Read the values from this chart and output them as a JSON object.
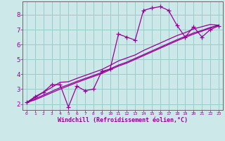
{
  "x_data": [
    0,
    1,
    2,
    3,
    4,
    5,
    6,
    7,
    8,
    9,
    10,
    11,
    12,
    13,
    14,
    15,
    16,
    17,
    18,
    19,
    20,
    21,
    22,
    23
  ],
  "y_main": [
    2.1,
    2.5,
    2.8,
    3.3,
    3.3,
    1.8,
    3.2,
    2.9,
    3.0,
    4.2,
    4.35,
    6.7,
    6.5,
    6.3,
    8.3,
    8.45,
    8.55,
    8.3,
    7.3,
    6.5,
    7.2,
    6.5,
    7.0,
    7.25
  ],
  "y_line1": [
    2.1,
    2.44,
    2.78,
    3.12,
    3.46,
    3.5,
    3.72,
    3.92,
    4.12,
    4.32,
    4.6,
    4.9,
    5.1,
    5.3,
    5.6,
    5.85,
    6.1,
    6.35,
    6.6,
    6.8,
    7.05,
    7.2,
    7.35,
    7.3
  ],
  "y_line2": [
    2.1,
    2.35,
    2.6,
    2.85,
    3.1,
    3.3,
    3.52,
    3.72,
    3.92,
    4.12,
    4.37,
    4.62,
    4.82,
    5.07,
    5.32,
    5.57,
    5.82,
    6.07,
    6.32,
    6.55,
    6.78,
    6.95,
    7.15,
    7.3
  ],
  "y_line3": [
    2.1,
    2.28,
    2.52,
    2.76,
    3.0,
    3.22,
    3.44,
    3.65,
    3.85,
    4.05,
    4.3,
    4.55,
    4.75,
    5.0,
    5.25,
    5.5,
    5.75,
    6.0,
    6.25,
    6.48,
    6.7,
    6.9,
    7.1,
    7.3
  ],
  "color": "#990099",
  "bg_color": "#cce8e8",
  "grid_color": "#99cccc",
  "xlabel": "Windchill (Refroidissement éolien,°C)",
  "xlim": [
    -0.5,
    23.5
  ],
  "ylim": [
    1.6,
    8.9
  ],
  "yticks": [
    2,
    3,
    4,
    5,
    6,
    7,
    8
  ],
  "xticks": [
    0,
    1,
    2,
    3,
    4,
    5,
    6,
    7,
    8,
    9,
    10,
    11,
    12,
    13,
    14,
    15,
    16,
    17,
    18,
    19,
    20,
    21,
    22,
    23
  ],
  "marker": "+",
  "markersize": 4,
  "linewidth": 0.9
}
